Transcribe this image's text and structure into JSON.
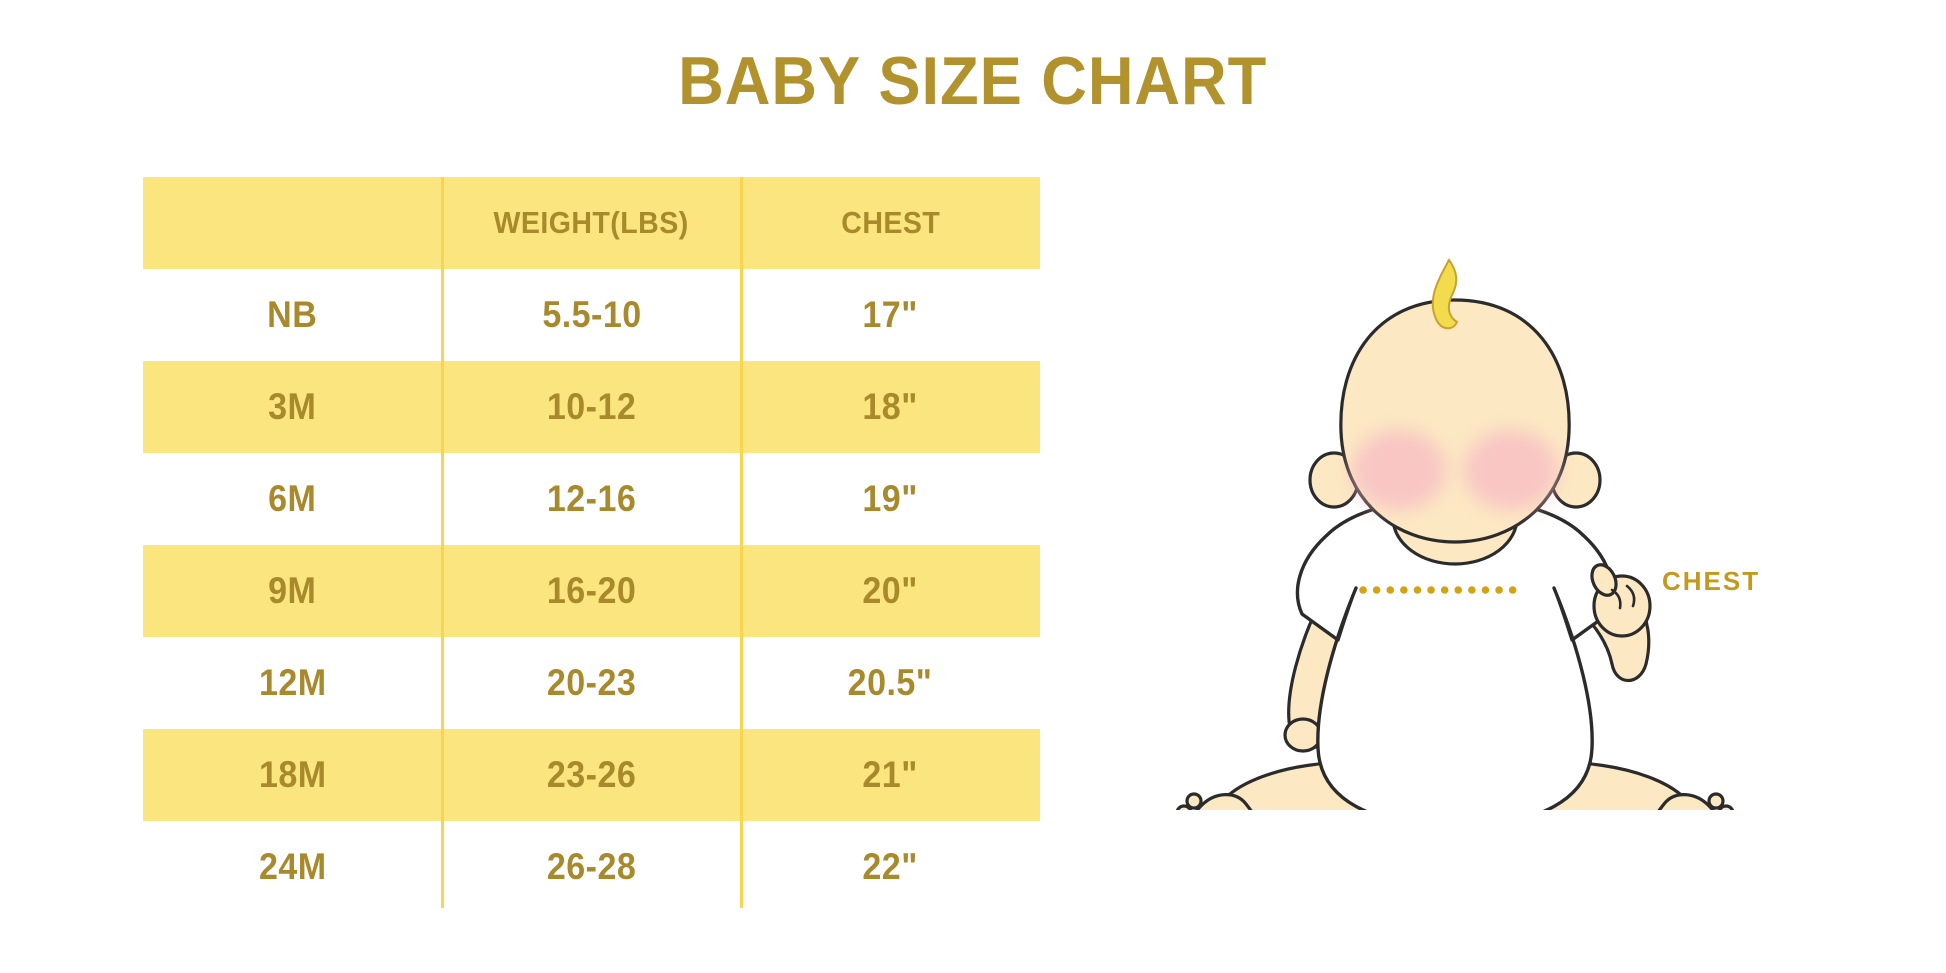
{
  "title": "BABY SIZE CHART",
  "table": {
    "headers": [
      "",
      "WEIGHT(LBS)",
      "CHEST"
    ],
    "rows": [
      [
        "NB",
        "5.5-10",
        "17\""
      ],
      [
        "3M",
        "10-12",
        "18\""
      ],
      [
        "6M",
        "12-16",
        "19\""
      ],
      [
        "9M",
        "16-20",
        "20\""
      ],
      [
        "12M",
        "20-23",
        "20.5\""
      ],
      [
        "18M",
        "23-26",
        "21\""
      ],
      [
        "24M",
        "26-28",
        "22\""
      ]
    ]
  },
  "diagram": {
    "label": "CHEST",
    "description": "sitting baby illustration with dotted line across chest"
  },
  "colors": {
    "title_gold": "#B1922C",
    "accent_gold": "#A8892C",
    "band_yellow": "#FBE57F",
    "divider_yellow": "#F7D54E",
    "label_gold": "#C39A1D",
    "dot_gold": "#D2A315",
    "skin": "#FCE8C3",
    "blush": "#F7BDC4",
    "hair": "#F2DC4E",
    "hair_outline": "#C9A22E",
    "outline": "#2B2B2B"
  },
  "chart_data": {
    "type": "table",
    "title": "BABY SIZE CHART",
    "columns": [
      "",
      "WEIGHT(LBS)",
      "CHEST"
    ],
    "rows": [
      [
        "NB",
        "5.5-10",
        "17\""
      ],
      [
        "3M",
        "10-12",
        "18\""
      ],
      [
        "6M",
        "12-16",
        "19\""
      ],
      [
        "9M",
        "16-20",
        "20\""
      ],
      [
        "12M",
        "20-23",
        "20.5\""
      ],
      [
        "18M",
        "23-26",
        "21\""
      ],
      [
        "24M",
        "26-28",
        "22\""
      ]
    ],
    "notes": "alternating yellow/white rows, header row yellow, gold condensed bold text"
  }
}
